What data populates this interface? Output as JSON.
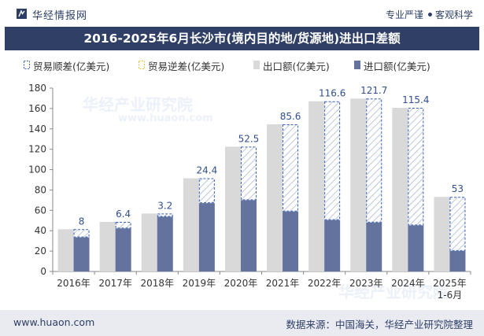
{
  "header": {
    "logo_text": "华经情报网",
    "slogan_left": "专业严谨",
    "slogan_right": "客观科学",
    "title": "2016-2025年6月长沙市(境内目的地/货源地)进出口差额"
  },
  "watermark": {
    "text": "华经产业研究院",
    "url": "www.huaon.com"
  },
  "footer": {
    "url": "www.huaon.com",
    "source": "数据来源：中国海关，华经产业研究院整理"
  },
  "colors": {
    "export": "#d9d9d9",
    "import": "#63739e",
    "surplus": "#3a62b4",
    "deficit": "#e6c23a",
    "title_bar": "#2f3f66"
  },
  "legend": [
    {
      "key": "surplus",
      "label": "贸易顺差(亿美元)"
    },
    {
      "key": "deficit",
      "label": "贸易逆差(亿美元)"
    },
    {
      "key": "export",
      "label": "出口额(亿美元)"
    },
    {
      "key": "import",
      "label": "进口额(亿美元)"
    }
  ],
  "chart_data": {
    "type": "bar",
    "categories": [
      "2016年",
      "2017年",
      "2018年",
      "2019年",
      "2020年",
      "2021年",
      "2022年",
      "2023年",
      "2024年",
      "2025年\n1-6月"
    ],
    "series": [
      {
        "name": "出口额(亿美元)",
        "values": [
          41.5,
          48.7,
          56.9,
          91.5,
          122.5,
          144.5,
          167.1,
          169.8,
          160.7,
          73.2
        ]
      },
      {
        "name": "进口额(亿美元)",
        "values": [
          33.5,
          42.3,
          53.7,
          67.1,
          70.0,
          58.9,
          50.5,
          48.1,
          45.3,
          20.2
        ]
      },
      {
        "name": "贸易顺差(亿美元)",
        "values": [
          8,
          6.4,
          3.2,
          24.4,
          52.5,
          85.6,
          116.6,
          121.7,
          115.4,
          53
        ]
      }
    ],
    "ylim": [
      0,
      180
    ],
    "yticks": [
      0,
      20,
      40,
      60,
      80,
      100,
      120,
      140,
      160,
      180
    ],
    "xlabel": "",
    "ylabel": "",
    "legend_position": "top",
    "grid": false
  }
}
